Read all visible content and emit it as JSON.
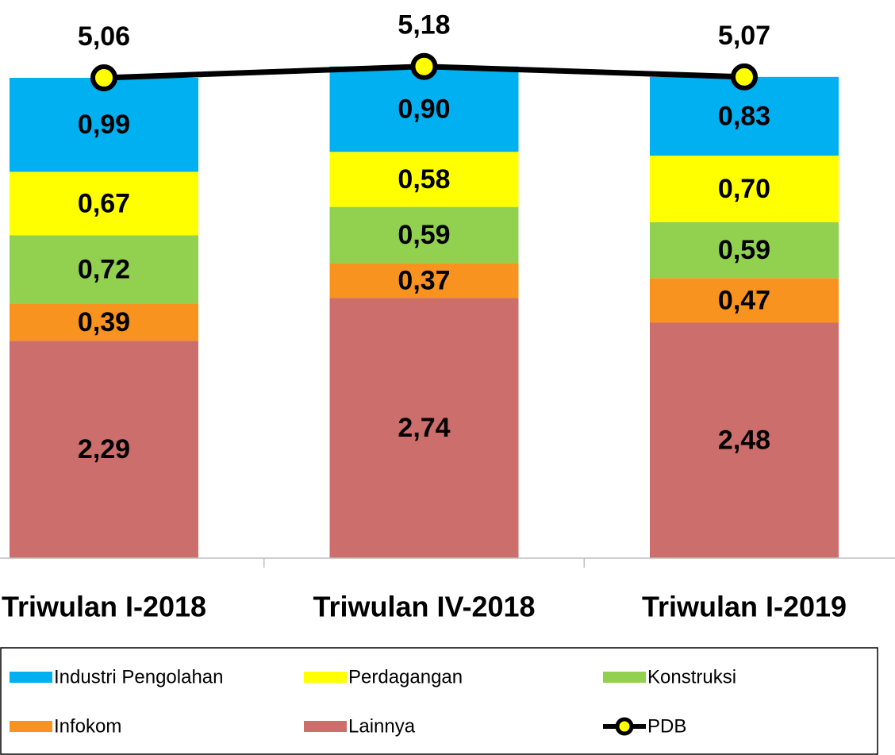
{
  "chart_data": {
    "type": "bar",
    "stacked": true,
    "categories": [
      "Triwulan I-2018",
      "Triwulan IV-2018",
      "Triwulan I-2019"
    ],
    "ylim": [
      0,
      5.88
    ],
    "series": [
      {
        "name": "Industri Pengolahan",
        "color": "#00b0f0",
        "values": [
          0.99,
          0.9,
          0.83
        ],
        "value_labels": [
          "0,99",
          "0,90",
          "0,83"
        ]
      },
      {
        "name": "Perdagangan",
        "color": "#ffff00",
        "values": [
          0.67,
          0.58,
          0.7
        ],
        "value_labels": [
          "0,67",
          "0,58",
          "0,70"
        ]
      },
      {
        "name": "Konstruksi",
        "color": "#92d050",
        "values": [
          0.72,
          0.59,
          0.59
        ],
        "value_labels": [
          "0,72",
          "0,59",
          "0,59"
        ]
      },
      {
        "name": "Infokom",
        "color": "#f7931e",
        "values": [
          0.39,
          0.37,
          0.47
        ],
        "value_labels": [
          "0,39",
          "0,37",
          "0,47"
        ]
      },
      {
        "name": "Lainnya",
        "color": "#cc6e6b",
        "values": [
          2.29,
          2.74,
          2.48
        ],
        "value_labels": [
          "2,29",
          "2,74",
          "2,48"
        ]
      },
      {
        "name": "PDB",
        "type": "line",
        "color": "#000000",
        "marker_color": "#ffff00",
        "values": [
          5.06,
          5.18,
          5.07
        ],
        "value_labels": [
          "5,06",
          "5,18",
          "5,07"
        ]
      }
    ],
    "legend": "bottom"
  }
}
